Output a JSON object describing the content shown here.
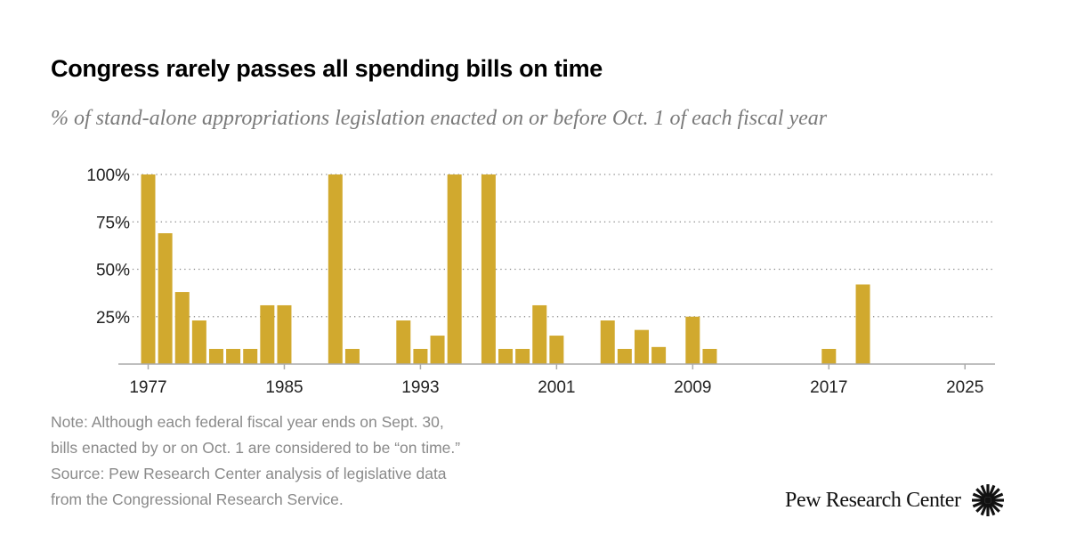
{
  "header": {
    "title": "Congress rarely passes all spending bills on time",
    "subtitle": "% of stand-alone appropriations legislation enacted on or before Oct. 1 of each fiscal year"
  },
  "notes": [
    "Note: Although each federal fiscal year ends on Sept. 30,",
    "bills enacted by or on Oct. 1 are considered to be “on time.”",
    "Source: Pew Research Center analysis of legislative data",
    "from the Congressional Research Service."
  ],
  "logo": {
    "text": "Pew Research Center",
    "icon": "pew-sunburst-icon"
  },
  "chart_data": {
    "type": "bar",
    "title": "Congress rarely passes all spending bills on time",
    "xlabel": "",
    "ylabel": "",
    "ylim": [
      0,
      100
    ],
    "grid": true,
    "bar_color": "#D1A92E",
    "x_ticks": [
      "1977",
      "1985",
      "1993",
      "2001",
      "2009",
      "2017",
      "2025"
    ],
    "y_ticks": [
      "100%",
      "75%",
      "50%",
      "25%"
    ],
    "y_tick_values": [
      100,
      75,
      50,
      25
    ],
    "categories": [
      1977,
      1978,
      1979,
      1980,
      1981,
      1982,
      1983,
      1984,
      1985,
      1986,
      1987,
      1988,
      1989,
      1990,
      1991,
      1992,
      1993,
      1994,
      1995,
      1996,
      1997,
      1998,
      1999,
      2000,
      2001,
      2002,
      2003,
      2004,
      2005,
      2006,
      2007,
      2008,
      2009,
      2010,
      2011,
      2012,
      2013,
      2014,
      2015,
      2016,
      2017,
      2018,
      2019,
      2020,
      2021,
      2022,
      2023,
      2024,
      2025
    ],
    "values": [
      100,
      69,
      38,
      23,
      8,
      8,
      8,
      31,
      31,
      0,
      0,
      100,
      8,
      0,
      0,
      23,
      8,
      15,
      100,
      0,
      100,
      8,
      8,
      31,
      15,
      0,
      0,
      23,
      8,
      18,
      9,
      0,
      25,
      8,
      0,
      0,
      0,
      0,
      0,
      0,
      8,
      0,
      42,
      0,
      0,
      0,
      0,
      0,
      0
    ]
  }
}
